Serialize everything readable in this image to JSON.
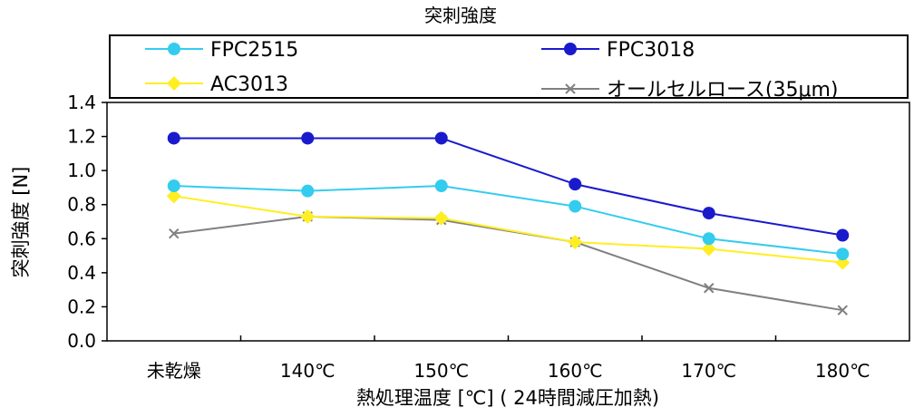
{
  "chart_data": {
    "type": "line",
    "title": "突刺強度",
    "xlabel": "熱処理温度 [℃] ( 24時間減圧加熱)",
    "ylabel": "突刺強度 [N]",
    "categories": [
      "未乾燥",
      "140℃",
      "150℃",
      "160℃",
      "170℃",
      "180℃"
    ],
    "ylim": [
      0,
      1.4
    ],
    "yticks": [
      "0.0",
      "0.2",
      "0.4",
      "0.6",
      "0.8",
      "1.0",
      "1.2",
      "1.4"
    ],
    "grid": false,
    "legend_placement": "top",
    "series": [
      {
        "name": "FPC2515",
        "color": "#33ccee",
        "marker": "circle",
        "values": [
          0.91,
          0.88,
          0.91,
          0.79,
          0.6,
          0.51
        ]
      },
      {
        "name": "FPC3018",
        "color": "#1a1acc",
        "marker": "circle",
        "values": [
          1.19,
          1.19,
          1.19,
          0.92,
          0.75,
          0.62
        ]
      },
      {
        "name": "AC3013",
        "color": "#ffee22",
        "marker": "diamond",
        "values": [
          0.85,
          0.73,
          0.72,
          0.58,
          0.54,
          0.46
        ]
      },
      {
        "name": "オールセルロース(35μm)",
        "color": "#808080",
        "marker": "x",
        "values": [
          0.63,
          0.73,
          0.71,
          0.58,
          0.31,
          0.18
        ]
      }
    ]
  }
}
